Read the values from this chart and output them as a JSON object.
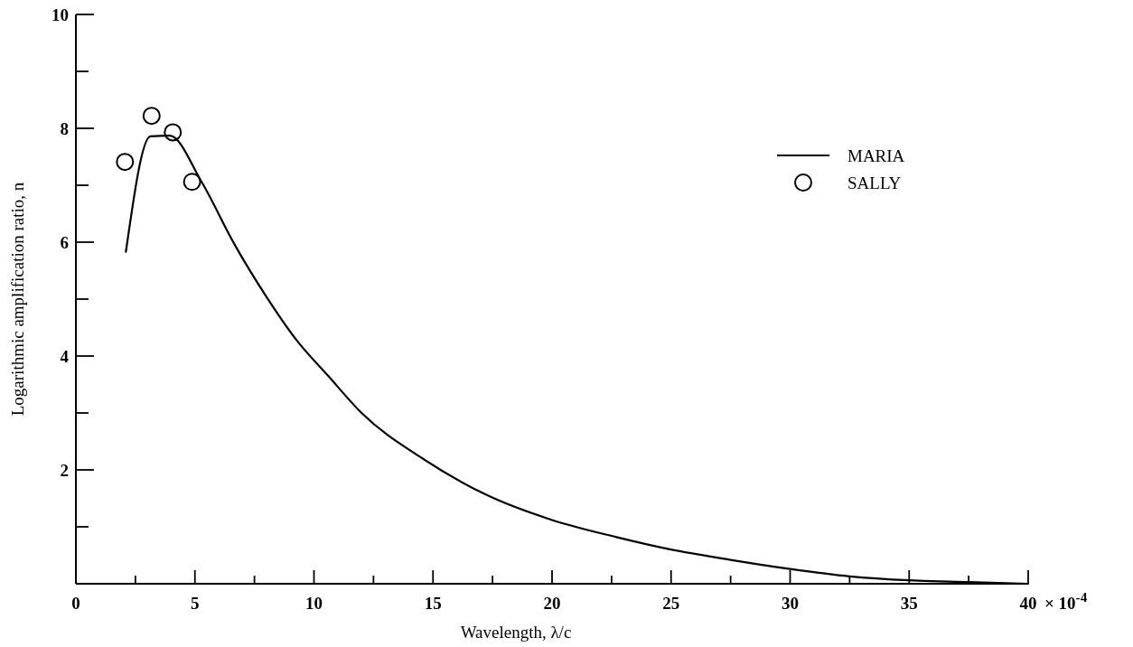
{
  "chart_data": {
    "type": "line",
    "xlabel": "Wavelength, λ/c",
    "ylabel": "Logarithmic amplification ratio, n",
    "xlim": [
      0,
      40
    ],
    "ylim": [
      0,
      10
    ],
    "xticks": [
      {
        "value": 0,
        "label": "0"
      },
      {
        "value": 2.5,
        "label": null
      },
      {
        "value": 5,
        "label": "5"
      },
      {
        "value": 7.5,
        "label": null
      },
      {
        "value": 10,
        "label": "10"
      },
      {
        "value": 12.5,
        "label": null
      },
      {
        "value": 15,
        "label": "15"
      },
      {
        "value": 17.5,
        "label": null
      },
      {
        "value": 20,
        "label": "20"
      },
      {
        "value": 22.5,
        "label": null
      },
      {
        "value": 25,
        "label": "25"
      },
      {
        "value": 27.5,
        "label": null
      },
      {
        "value": 30,
        "label": "30"
      },
      {
        "value": 32.5,
        "label": null
      },
      {
        "value": 35,
        "label": "35"
      },
      {
        "value": 37.5,
        "label": null
      },
      40
    ],
    "annotations": [
      "× 10$^{-4}$"
    ],
    "yticks": [
      {
        "value": 0,
        "label": null
      },
      {
        "value": 1,
        "label": null
      },
      2,
      {
        "value": 3,
        "label": null
      },
      4,
      {
        "value": 5,
        "label": null
      },
      6,
      {
        "value": 7,
        "label": null
      },
      8,
      {
        "value": 9,
        "label": null
      },
      10
    ],
    "legend": "top right",
    "grid": false,
    "series": [
      {
        "name": "MARIA",
        "color": "#000000",
        "marker": "none",
        "line_style": "solid",
        "x": [
          2.1,
          3.13,
          3.94,
          5.28,
          6.65,
          8.02,
          9.23,
          10.6,
          12.0,
          14.6,
          17.3,
          20.0,
          22.7,
          24.9,
          27.5,
          30.0,
          32.5,
          35.0,
          37.5,
          40.0
        ],
        "values": [
          5.83,
          7.86,
          7.87,
          7.06,
          5.97,
          5.03,
          4.3,
          3.65,
          3.0,
          2.19,
          1.55,
          1.12,
          0.82,
          0.61,
          0.42,
          0.26,
          0.13,
          0.06,
          0.03,
          0.0
        ]
      },
      {
        "name": "SALLY",
        "type": "scatter",
        "color": "#000000",
        "marker": "circle",
        "x": [
          2.06,
          3.18,
          4.07,
          4.88
        ],
        "values": [
          7.41,
          8.22,
          7.93,
          7.06
        ]
      }
    ]
  }
}
